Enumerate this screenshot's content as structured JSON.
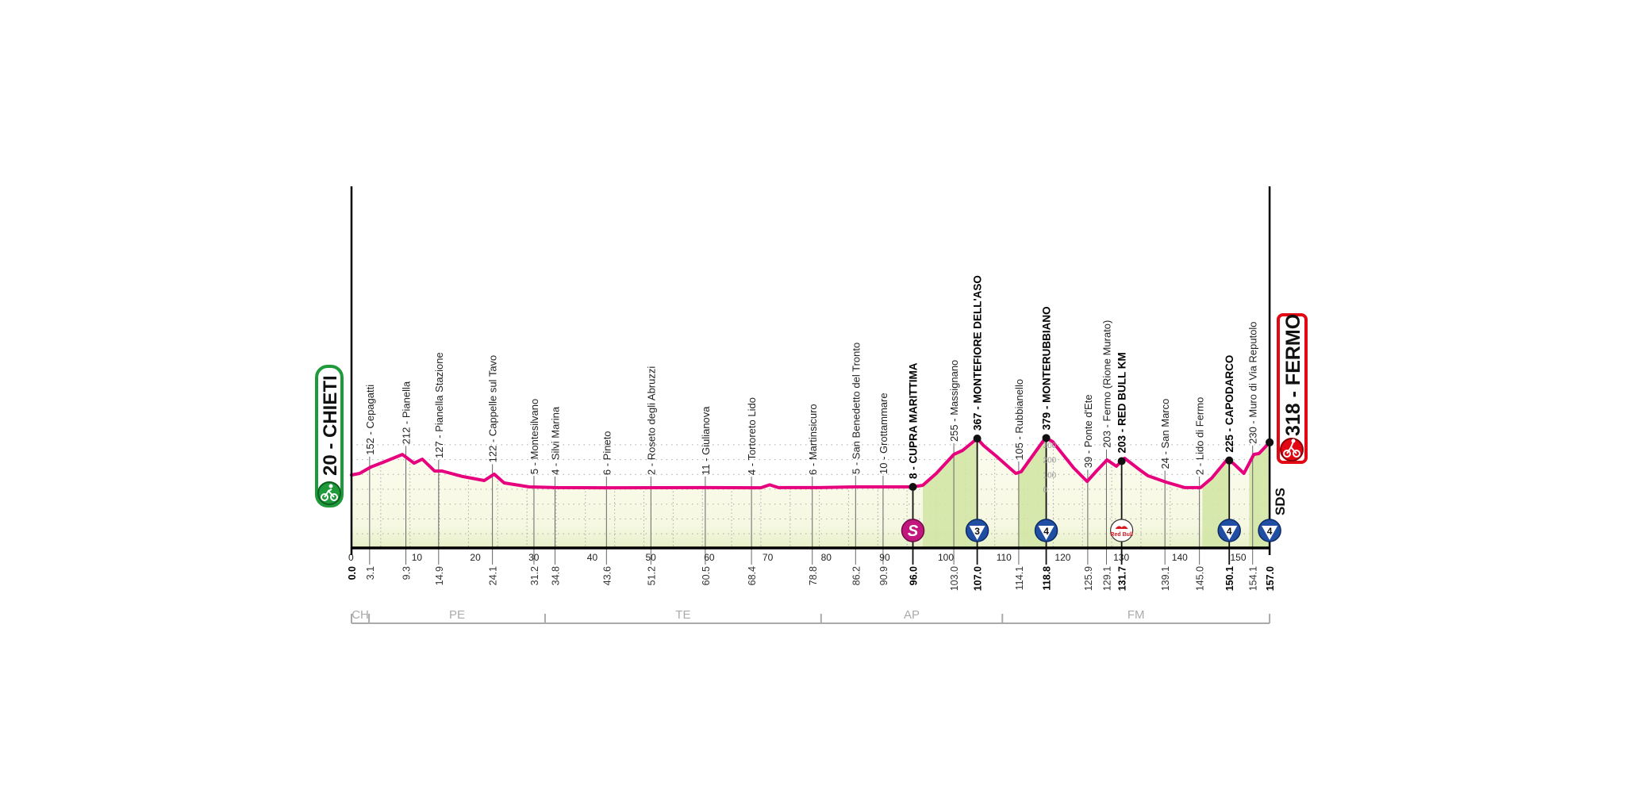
{
  "chart_data": {
    "type": "area",
    "xlabel": "",
    "ylabel": "",
    "x_range_km": [
      0,
      157
    ],
    "grid": true,
    "line_color": "#e6007e",
    "elevation_scale_labels": [
      "0",
      "100",
      "200",
      "300"
    ],
    "elevation_scale_values": [
      0,
      100,
      200,
      300
    ],
    "km_ticks": [
      0,
      10,
      20,
      30,
      40,
      50,
      60,
      70,
      80,
      90,
      100,
      110,
      120,
      130,
      140,
      150
    ],
    "profile": [
      [
        0,
        96
      ],
      [
        1.4,
        107
      ],
      [
        3.3,
        150
      ],
      [
        5.4,
        182
      ],
      [
        8.7,
        235
      ],
      [
        10.7,
        176
      ],
      [
        12.1,
        203
      ],
      [
        14.2,
        123
      ],
      [
        15.5,
        123
      ],
      [
        19.0,
        86
      ],
      [
        22.7,
        59
      ],
      [
        24.4,
        102
      ],
      [
        26.1,
        43
      ],
      [
        30.4,
        16
      ],
      [
        34.9,
        11
      ],
      [
        45,
        10
      ],
      [
        60,
        11
      ],
      [
        70,
        10
      ],
      [
        71.5,
        30
      ],
      [
        73,
        11
      ],
      [
        80,
        11
      ],
      [
        86,
        16
      ],
      [
        96,
        16
      ],
      [
        97.7,
        27
      ],
      [
        100,
        107
      ],
      [
        103,
        235
      ],
      [
        104.5,
        262
      ],
      [
        107,
        342
      ],
      [
        108.1,
        294
      ],
      [
        110.2,
        225
      ],
      [
        113.6,
        107
      ],
      [
        114.5,
        118
      ],
      [
        118.7,
        348
      ],
      [
        119.9,
        321
      ],
      [
        123.5,
        144
      ],
      [
        125.8,
        53
      ],
      [
        127.5,
        128
      ],
      [
        129.2,
        198
      ],
      [
        130.8,
        155
      ],
      [
        132.2,
        209
      ],
      [
        134.9,
        128
      ],
      [
        136.2,
        91
      ],
      [
        139.3,
        48
      ],
      [
        142.5,
        11
      ],
      [
        145.2,
        11
      ],
      [
        147.1,
        75
      ],
      [
        149.8,
        203
      ],
      [
        150.9,
        171
      ],
      [
        152.6,
        107
      ],
      [
        154.3,
        235
      ],
      [
        155.2,
        241
      ],
      [
        157,
        316
      ]
    ],
    "climb_zones": [
      [
        97.7,
        107
      ],
      [
        114.0,
        118.8
      ],
      [
        145.5,
        150.1
      ],
      [
        153.5,
        157
      ]
    ],
    "start": {
      "label": "20 - CHIETI",
      "km": "0.0",
      "color": "#1f9a3a"
    },
    "finish": {
      "label": "318 - FERMO",
      "km": "157.0",
      "color": "#e30613",
      "sponsor": "SDS"
    },
    "waypoints": [
      {
        "km": 3.1,
        "km_label": "3.1",
        "label": "152 - Cepagatti",
        "bold": false
      },
      {
        "km": 9.3,
        "km_label": "9.3",
        "label": "212 - Pianella",
        "bold": false
      },
      {
        "km": 14.9,
        "km_label": "14.9",
        "label": "127 - Pianella Stazione",
        "bold": false
      },
      {
        "km": 24.1,
        "km_label": "24.1",
        "label": "122 - Cappelle sul Tavo",
        "bold": false
      },
      {
        "km": 31.2,
        "km_label": "31.2",
        "label": "5 - Montesilvano",
        "bold": false
      },
      {
        "km": 34.8,
        "km_label": "34.8",
        "label": "4 - Silvi Marina",
        "bold": false
      },
      {
        "km": 43.6,
        "km_label": "43.6",
        "label": "6 - Pineto",
        "bold": false
      },
      {
        "km": 51.2,
        "km_label": "51.2",
        "label": "2 - Roseto degli Abruzzi",
        "bold": false
      },
      {
        "km": 60.5,
        "km_label": "60.5",
        "label": "11 - Giulianova",
        "bold": false
      },
      {
        "km": 68.4,
        "km_label": "68.4",
        "label": "4 - Tortoreto Lido",
        "bold": false
      },
      {
        "km": 78.8,
        "km_label": "78.8",
        "label": "6 - Martinsicuro",
        "bold": false
      },
      {
        "km": 86.2,
        "km_label": "86.2",
        "label": "5 - San Benedetto del Tronto",
        "bold": false
      },
      {
        "km": 90.9,
        "km_label": "90.9",
        "label": "10 - Grottammare",
        "bold": false
      },
      {
        "km": 96.0,
        "km_label": "96.0",
        "label": "8 - CUPRA MARITTIMA",
        "bold": true,
        "marker": "sprint",
        "marker_text": "S"
      },
      {
        "km": 103.0,
        "km_label": "103.0",
        "label": "255 - Massignano",
        "bold": false
      },
      {
        "km": 107.0,
        "km_label": "107.0",
        "label": "367 - MONTEFIORE DELL'ASO",
        "bold": true,
        "marker": "kom",
        "marker_text": "3"
      },
      {
        "km": 114.1,
        "km_label": "114.1",
        "label": "105 - Rubbianello",
        "bold": false
      },
      {
        "km": 118.8,
        "km_label": "118.8",
        "label": "379 - MONTERUBBIANO",
        "bold": true,
        "marker": "kom",
        "marker_text": "4"
      },
      {
        "km": 125.9,
        "km_label": "125.9",
        "label": "39 - Ponte d'Ete",
        "bold": false
      },
      {
        "km": 129.1,
        "km_label": "129.1",
        "label": "203 - Fermo (Rione Murato)",
        "bold": false
      },
      {
        "km": 131.7,
        "km_label": "131.7",
        "label": "203 - RED BULL KM",
        "bold": true,
        "marker": "redbull",
        "marker_text": "Red Bull"
      },
      {
        "km": 139.1,
        "km_label": "139.1",
        "label": "24 - San Marco",
        "bold": false
      },
      {
        "km": 145.0,
        "km_label": "145.0",
        "label": "2 - Lido di Fermo",
        "bold": false
      },
      {
        "km": 150.1,
        "km_label": "150.1",
        "label": "225 - CAPODARCO",
        "bold": true,
        "marker": "kom",
        "marker_text": "4"
      },
      {
        "km": 154.1,
        "km_label": "154.1",
        "label": "230 - Muro di Via Reputolo",
        "bold": false
      },
      {
        "km": 157.0,
        "km_label": "",
        "label": "",
        "bold": true,
        "marker": "kom",
        "marker_text": "4"
      }
    ],
    "provinces": [
      {
        "code": "CH",
        "from": 0,
        "to": 3
      },
      {
        "code": "PE",
        "from": 3,
        "to": 33.1
      },
      {
        "code": "TE",
        "from": 33.1,
        "to": 80.3
      },
      {
        "code": "AP",
        "from": 80.3,
        "to": 111.3
      },
      {
        "code": "FM",
        "from": 111.3,
        "to": 157
      }
    ],
    "colors": {
      "sprint": "#c2187d",
      "kom": "#1f4ea3",
      "redbull_red": "#d71920",
      "flat_fill": "#fafbe8",
      "climb_fill": "#d3e6a6"
    }
  }
}
